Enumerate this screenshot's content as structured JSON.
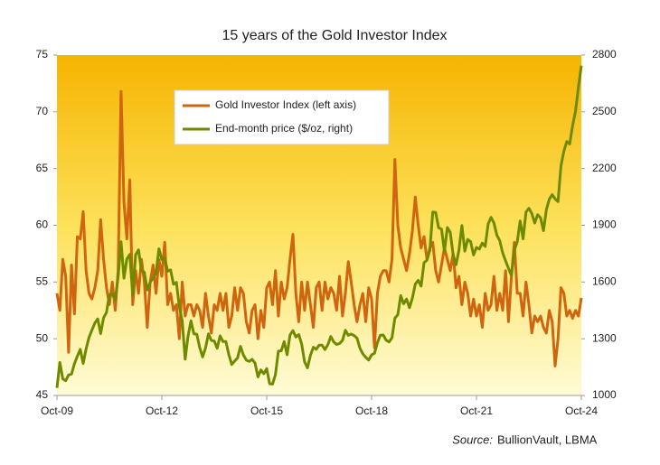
{
  "chart_data": {
    "type": "line",
    "title": "15 years of the Gold Investor Index",
    "source_label": "Source:",
    "source": "BullionVault, LBMA",
    "categories": [
      "Oct-09",
      null,
      null,
      null,
      null,
      null,
      null,
      null,
      null,
      null,
      null,
      null,
      null,
      null,
      null,
      null,
      null,
      null,
      null,
      null,
      null,
      null,
      null,
      null,
      null,
      null,
      null,
      null,
      null,
      null,
      null,
      null,
      null,
      null,
      null,
      null,
      "Oct-12",
      null,
      null,
      null,
      null,
      null,
      null,
      null,
      null,
      null,
      null,
      null,
      null,
      null,
      null,
      null,
      null,
      null,
      null,
      null,
      null,
      null,
      null,
      null,
      null,
      null,
      null,
      null,
      null,
      null,
      null,
      null,
      null,
      null,
      null,
      null,
      "Oct-15",
      null,
      null,
      null,
      null,
      null,
      null,
      null,
      null,
      null,
      null,
      null,
      null,
      null,
      null,
      null,
      null,
      null,
      null,
      null,
      null,
      null,
      null,
      null,
      null,
      null,
      null,
      null,
      null,
      null,
      null,
      null,
      null,
      null,
      null,
      null,
      "Oct-18",
      null,
      null,
      null,
      null,
      null,
      null,
      null,
      null,
      null,
      null,
      null,
      null,
      null,
      null,
      null,
      null,
      null,
      null,
      null,
      null,
      null,
      null,
      null,
      null,
      null,
      null,
      null,
      null,
      null,
      null,
      null,
      null,
      null,
      null,
      null,
      "Oct-21",
      null,
      null,
      null,
      null,
      null,
      null,
      null,
      null,
      null,
      null,
      null,
      null,
      null,
      null,
      null,
      null,
      null,
      null,
      null,
      null,
      null,
      null,
      null,
      null,
      null,
      null,
      null,
      null,
      null,
      null,
      null,
      null,
      null,
      null,
      null,
      "Oct-24"
    ],
    "series": [
      {
        "name": "Gold Investor Index (left axis)",
        "color": "#d0650f",
        "axis": "y",
        "values": [
          54,
          52.5,
          57,
          55.5,
          48.8,
          56.5,
          52.2,
          59,
          58.8,
          61.2,
          56,
          54,
          53.5,
          54.5,
          56,
          60.5,
          57,
          54.5,
          53,
          55,
          52.5,
          56,
          71.8,
          62,
          58.8,
          64,
          53,
          56,
          54,
          57,
          55,
          51,
          55,
          56.5,
          54,
          57,
          55.5,
          58.5,
          53,
          54,
          52.5,
          53,
          50,
          55,
          52,
          53,
          53,
          52,
          53,
          52.5,
          51,
          54,
          52,
          50.5,
          53,
          52.5,
          54,
          52.5,
          54,
          51,
          52,
          54.5,
          52.5,
          54.5,
          54,
          51.5,
          50.5,
          52.5,
          53,
          50,
          52.5,
          51,
          54.5,
          55,
          53,
          56,
          52,
          55,
          53.5,
          54.5,
          57,
          59.2,
          54,
          51.5,
          55,
          52.5,
          55,
          53,
          51,
          54.5,
          55,
          52.5,
          55,
          53.5,
          54.5,
          54,
          52.5,
          55.5,
          52,
          54,
          56.8,
          55,
          53,
          51.5,
          53,
          54,
          51.5,
          54.5,
          53.5,
          49.2,
          54,
          55.5,
          56,
          56,
          55,
          57,
          65.8,
          60,
          58,
          57,
          56,
          57.5,
          59.5,
          62.5,
          60,
          58,
          59,
          57,
          58,
          58.5,
          56,
          55,
          56.5,
          58,
          57,
          56,
          57.5,
          54.5,
          55.5,
          53,
          55,
          54,
          52,
          53.5,
          52,
          53,
          51,
          54,
          52.5,
          53,
          55.5,
          52.5,
          54,
          52.5,
          56,
          51.5,
          55.5,
          58.5,
          54,
          54,
          52,
          55,
          53,
          50.5,
          52,
          51.5,
          52,
          51,
          50.5,
          52.5,
          51.5,
          47.6,
          50,
          54.5,
          54,
          52,
          52.5,
          51.8,
          52.5,
          52,
          53.6
        ]
      },
      {
        "name": "End-month price ($/oz, right)",
        "color": "#6e8a00",
        "axis": "y2",
        "values": [
          1040,
          1175,
          1088,
          1078,
          1109,
          1113,
          1168,
          1208,
          1244,
          1169,
          1246,
          1307,
          1346,
          1383,
          1405,
          1327,
          1411,
          1439,
          1535,
          1536,
          1505,
          1628,
          1813,
          1620,
          1722,
          1746,
          1531,
          1744,
          1770,
          1662,
          1651,
          1558,
          1598,
          1622,
          1648,
          1776,
          1719,
          1726,
          1657,
          1664,
          1588,
          1598,
          1469,
          1394,
          1192,
          1314,
          1395,
          1326,
          1324,
          1253,
          1204,
          1251,
          1326,
          1291,
          1288,
          1250,
          1315,
          1285,
          1285,
          1216,
          1164,
          1182,
          1199,
          1260,
          1214,
          1187,
          1180,
          1191,
          1171,
          1098,
          1135,
          1115,
          1142,
          1062,
          1060,
          1111,
          1234,
          1237,
          1285,
          1215,
          1320,
          1343,
          1309,
          1322,
          1272,
          1178,
          1146,
          1212,
          1255,
          1244,
          1266,
          1266,
          1243,
          1269,
          1312,
          1283,
          1270,
          1275,
          1291,
          1345,
          1318,
          1325,
          1317,
          1303,
          1250,
          1220,
          1202,
          1187,
          1215,
          1223,
          1279,
          1319,
          1320,
          1292,
          1283,
          1305,
          1409,
          1427,
          1528,
          1485,
          1510,
          1464,
          1515,
          1589,
          1609,
          1578,
          1702,
          1715,
          1768,
          1970,
          1968,
          1887,
          1880,
          1762,
          1888,
          1863,
          1743,
          1691,
          1770,
          1899,
          1763,
          1825,
          1813,
          1743,
          1783,
          1774,
          1806,
          1788,
          1906,
          1942,
          1912,
          1848,
          1818,
          1754,
          1712,
          1672,
          1634,
          1768,
          1813,
          1923,
          1828,
          1969,
          1990,
          1962,
          1912,
          1956,
          1940,
          1871,
          1983,
          2038,
          2062,
          2039,
          2025,
          2214,
          2292,
          2343,
          2330,
          2427,
          2503,
          2630,
          2744
        ]
      }
    ],
    "ylim": [
      45,
      75
    ],
    "yticks": [
      45,
      50,
      55,
      60,
      65,
      70,
      75
    ],
    "y2lim": [
      1000,
      2800
    ],
    "y2ticks": [
      1000,
      1300,
      1600,
      1900,
      2200,
      2500,
      2800
    ]
  }
}
